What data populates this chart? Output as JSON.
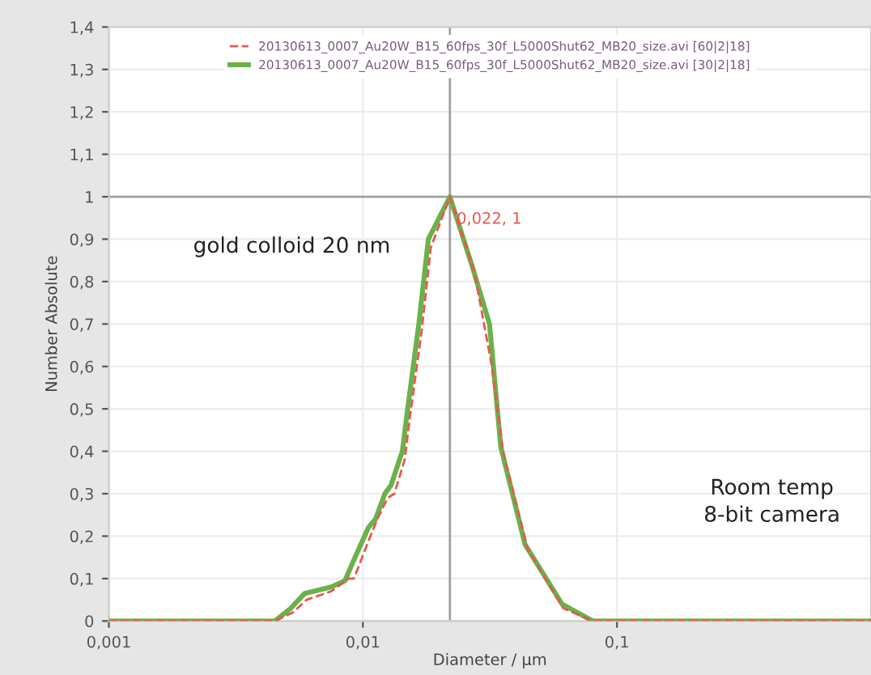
{
  "chart_data": {
    "type": "line",
    "xlabel": "Diameter / µm",
    "ylabel": "Number Absolute",
    "log": "x",
    "xlim": [
      0.001,
      1
    ],
    "ylim": [
      0,
      1.4
    ],
    "xticks": [
      {
        "value": 0.001,
        "label": "0,001"
      },
      {
        "value": 0.01,
        "label": "0,01"
      },
      {
        "value": 0.1,
        "label": "0,1"
      }
    ],
    "yticks": [
      0,
      {
        "value": 0.1,
        "label": "0,1"
      },
      {
        "value": 0.2,
        "label": "0,2"
      },
      {
        "value": 0.3,
        "label": "0,3"
      },
      {
        "value": 0.4,
        "label": "0,4"
      },
      {
        "value": 0.5,
        "label": "0,5"
      },
      {
        "value": 0.6,
        "label": "0,6"
      },
      {
        "value": 0.7,
        "label": "0,7"
      },
      {
        "value": 0.8,
        "label": "0,8"
      },
      {
        "value": 0.9,
        "label": "0,9"
      },
      1,
      {
        "value": 1.1,
        "label": "1,1"
      },
      {
        "value": 1.2,
        "label": "1,2"
      },
      {
        "value": 1.3,
        "label": "1,3"
      },
      {
        "value": 1.4,
        "label": "1,4"
      }
    ],
    "grid": true,
    "legend": "top",
    "marker": "none",
    "series": [
      {
        "name": "20130613_0007_Au20W_B15_60fps_30f_L5000Shut62_MB20_size.avi [60|2|18]",
        "color": "#e8574f",
        "line_style": "dashed",
        "x": [
          0.001,
          0.0045,
          0.0053,
          0.006,
          0.0075,
          0.0088,
          0.0092,
          0.0095,
          0.0107,
          0.0114,
          0.0125,
          0.0133,
          0.0146,
          0.0153,
          0.017,
          0.0185,
          0.022,
          0.0275,
          0.0322,
          0.0356,
          0.0445,
          0.0615,
          0.0803,
          1
        ],
        "values": [
          0,
          0,
          0.02,
          0.05,
          0.07,
          0.1,
          0.1,
          0.12,
          0.2,
          0.24,
          0.29,
          0.3,
          0.38,
          0.48,
          0.68,
          0.88,
          1,
          0.82,
          0.6,
          0.4,
          0.17,
          0.03,
          0,
          0
        ]
      },
      {
        "name": "20130613_0007_Au20W_B15_60fps_30f_L5000Shut62_MB20_size.avi [30|2|18]",
        "color": "#6ab24a",
        "line_style": "solid",
        "x": [
          0.001,
          0.0045,
          0.0052,
          0.0059,
          0.0075,
          0.0085,
          0.009,
          0.0105,
          0.0112,
          0.0122,
          0.0129,
          0.0143,
          0.015,
          0.0166,
          0.0181,
          0.022,
          0.0268,
          0.0315,
          0.0349,
          0.0435,
          0.0608,
          0.0803,
          1
        ],
        "values": [
          0,
          0,
          0.03,
          0.065,
          0.08,
          0.095,
          0.13,
          0.22,
          0.24,
          0.3,
          0.32,
          0.4,
          0.5,
          0.7,
          0.9,
          1,
          0.84,
          0.7,
          0.41,
          0.18,
          0.04,
          0,
          0
        ]
      }
    ],
    "ref_lines": [
      {
        "axis": "x",
        "value": 0.022,
        "color": "#a0a0a0"
      },
      {
        "axis": "y",
        "value": 1,
        "color": "#a0a0a0"
      }
    ],
    "annotations": [
      {
        "text": "0,022, 1",
        "x": 0.022,
        "y": 1
      },
      "gold colloid 20 nm",
      "Room temp\n8-bit camera"
    ]
  }
}
